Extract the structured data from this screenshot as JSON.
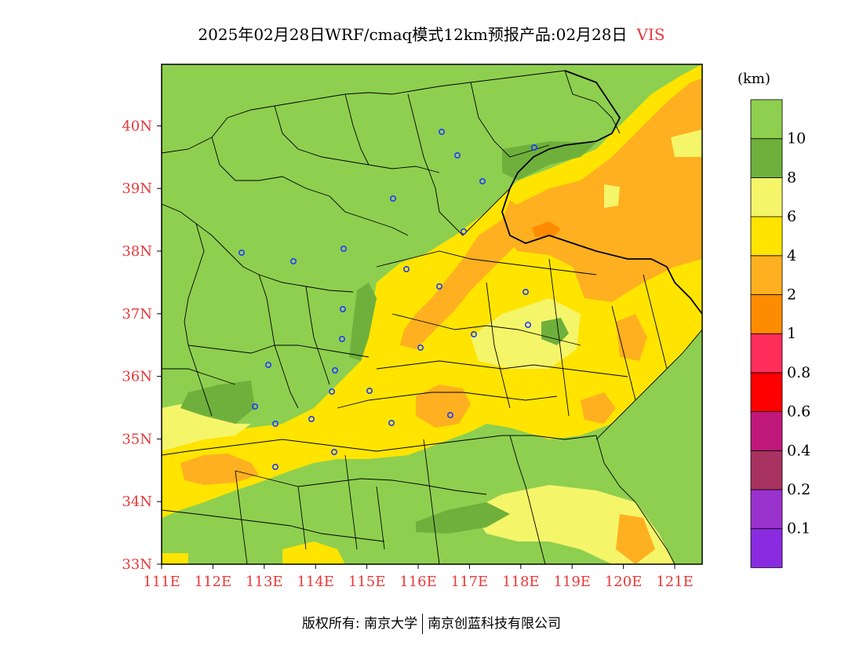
{
  "title": {
    "main": "2025年02月28日WRF/cmaq模式12km预报产品:02月28日",
    "variable": "VIS"
  },
  "colorbar": {
    "unit": "(km)",
    "colors": [
      "#8a2be2",
      "#9932cc",
      "#a83260",
      "#c0187a",
      "#ff0000",
      "#ff2e5a",
      "#ff8c00",
      "#ffb020",
      "#ffe400",
      "#f5f56a",
      "#6fb03c",
      "#8ecf50"
    ],
    "labels": [
      "0.1",
      "0.2",
      "0.4",
      "0.6",
      "0.8",
      "1",
      "2",
      "4",
      "6",
      "8",
      "10"
    ]
  },
  "map": {
    "lat_labels": [
      "33N",
      "34N",
      "35N",
      "36N",
      "37N",
      "38N",
      "39N",
      "40N"
    ],
    "lon_labels": [
      "111E",
      "112E",
      "113E",
      "114E",
      "115E",
      "116E",
      "117E",
      "118E",
      "119E",
      "120E",
      "121E"
    ],
    "colors": {
      "green": "#8ecf50",
      "dark_green": "#6fb03c",
      "light_yellow": "#f5f56a",
      "yellow": "#ffe400",
      "orange": "#ffb020",
      "axis_label": "#e8393a",
      "station": "#1e3cff"
    }
  },
  "footer": {
    "left": "版权所有: 南京大学",
    "right": "南京创蓝科技有限公司"
  }
}
